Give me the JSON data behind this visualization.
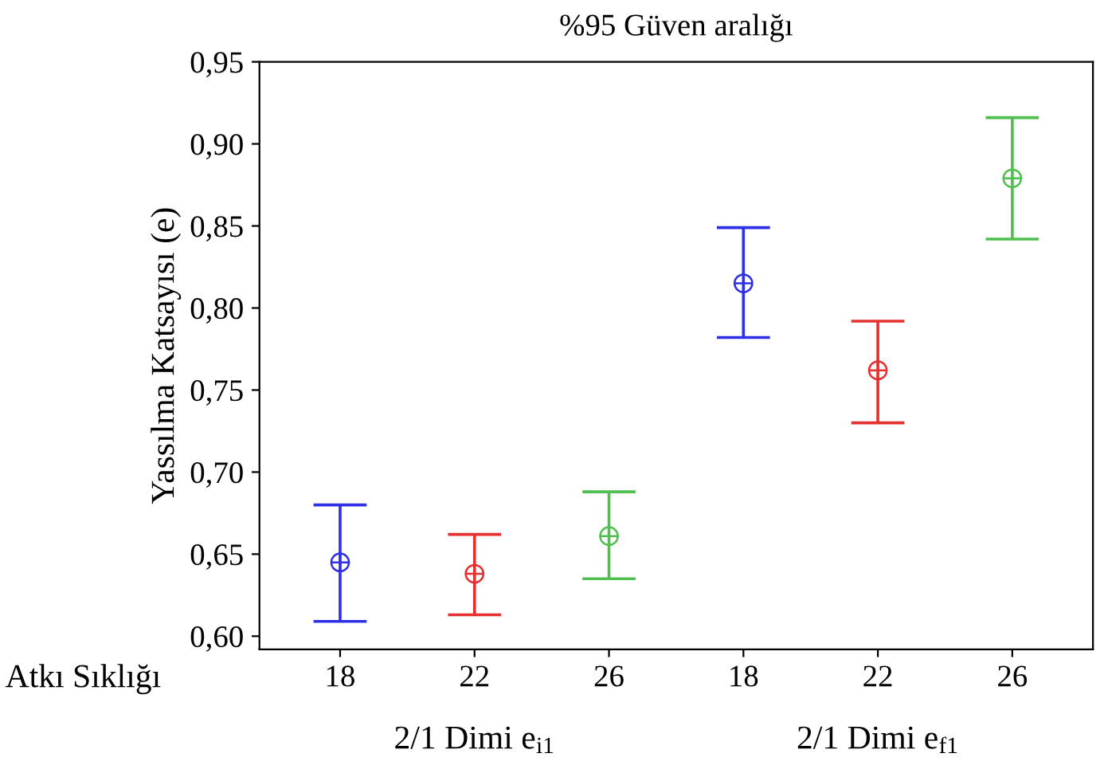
{
  "chart_data": {
    "type": "scatter",
    "title": "%95 Güven aralığı",
    "ylabel": "Yassılma Katsayısı (e)",
    "xlabel": "Atkı Sıklığı",
    "categories": [
      "18",
      "22",
      "26",
      "18",
      "22",
      "26"
    ],
    "values": [
      0.645,
      0.638,
      0.661,
      0.815,
      0.762,
      0.879
    ],
    "errors": [
      [
        0.609,
        0.68
      ],
      [
        0.613,
        0.662
      ],
      [
        0.635,
        0.688
      ],
      [
        0.782,
        0.849
      ],
      [
        0.73,
        0.792
      ],
      [
        0.842,
        0.916
      ]
    ],
    "colors": [
      "#2f2fe6",
      "#e62f2f",
      "#4fc04f",
      "#2f2fe6",
      "#e62f2f",
      "#4fc04f"
    ],
    "annotations": [
      "2/1 Dimi e$_{i1}$",
      "2/1 Dimi e$_{f1}$"
    ],
    "ylim": [
      0.592,
      0.95
    ],
    "yticks": [
      {
        "value": 0.6,
        "label": "0,60"
      },
      {
        "value": 0.65,
        "label": "0,65"
      },
      {
        "value": 0.7,
        "label": "0,70"
      },
      {
        "value": 0.75,
        "label": "0,75"
      },
      {
        "value": 0.8,
        "label": "0,80"
      },
      {
        "value": 0.85,
        "label": "0,85"
      },
      {
        "value": 0.9,
        "label": "0,90"
      },
      {
        "value": 0.95,
        "label": "0,95"
      }
    ],
    "marker": "circle",
    "grid": false,
    "legend": false
  }
}
